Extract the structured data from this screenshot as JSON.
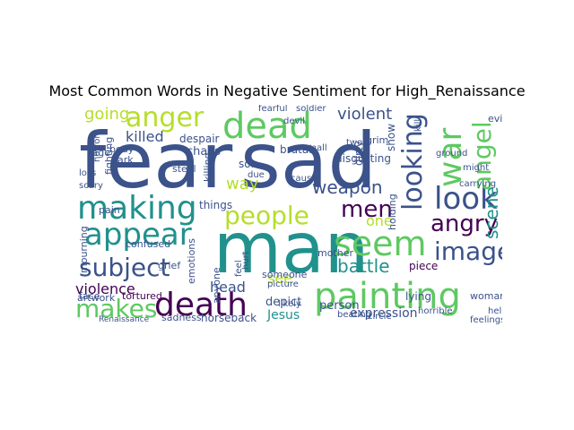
{
  "title": "Most Common Words in Negative Sentiment for High_Renaissance",
  "colors": {
    "dark_purple": "#440154",
    "indigo": "#3b528b",
    "teal": "#21918c",
    "green": "#5ec962",
    "yellow_green": "#b5de2b",
    "light": "#9fda3a"
  },
  "words": {
    "fear": "fear",
    "sad": "sad",
    "man": "man",
    "painting": "painting",
    "dead": "dead",
    "anger": "anger",
    "making": "making",
    "appear": "appear",
    "seem": "seem",
    "people": "people",
    "death": "death",
    "subject": "subject",
    "look": "look",
    "angry": "angry",
    "image": "image",
    "war": "war",
    "angel": "angel",
    "looking": "looking",
    "makes": "makes",
    "men": "men",
    "weapon": "weapon",
    "violent": "violent",
    "violence": "violence",
    "going": "going",
    "killed": "killed",
    "scene": "scene",
    "battle": "battle",
    "expression": "expression",
    "Jesus": "Jesus",
    "head": "head",
    "way": "way",
    "see": "see",
    "one": "one",
    "piece": "piece",
    "person": "person",
    "chaos": "chaos",
    "despair": "despair",
    "horseback": "horseback",
    "sadness": "sadness",
    "things": "things",
    "pain": "pain",
    "grief": "grief",
    "tortured": "tortured",
    "artwork": "artwork",
    "mother": "mother",
    "lying": "lying",
    "woman": "woman",
    "depict": "depict",
    "beating": "beating",
    "brutal": "brutal",
    "disgusting": "disgusting",
    "evil": "evil",
    "son": "son",
    "rage": "rage",
    "dark": "dark",
    "body": "body",
    "steal": "steal",
    "someone": "someone",
    "confused": "confused",
    "mourning": "mourning",
    "scary": "scary",
    "face": "face",
    "loss": "loss",
    "dirty": "dirty",
    "grim": "grim",
    "soldier": "soldier",
    "fearful": "fearful",
    "devil": "devil",
    "small": "small",
    "show": "show",
    "hell": "hell",
    "feelings": "feelings",
    "likely": "likely",
    "emotions": "emotions",
    "Renaissance": "Renaissance",
    "horrible": "horrible",
    "circle": "circle",
    "cause": "cause",
    "anyone": "anyone",
    "picture": "picture",
    "two": "two",
    "due": "due",
    "ground": "ground",
    "might": "might",
    "carrying": "carrying",
    "killing": "killing",
    "fighting": "fighting",
    "horror": "horror",
    "holding": "holding",
    "feel": "feel",
    "hurt": "hurt",
    "kill": "kill"
  }
}
